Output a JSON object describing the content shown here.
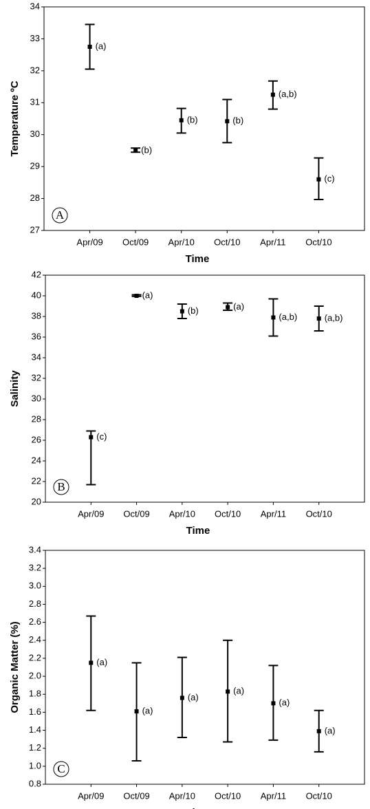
{
  "chart_data": [
    {
      "type": "errorbar",
      "panel": "A",
      "x_label": "Time",
      "y_label": "Temperature ºC",
      "categories": [
        "Apr/09",
        "Oct/09",
        "Apr/10",
        "Oct/10",
        "Apr/11",
        "Oct/10"
      ],
      "values": [
        32.75,
        29.5,
        30.45,
        30.42,
        31.25,
        28.6
      ],
      "lower": [
        32.05,
        29.45,
        30.05,
        29.75,
        30.8,
        27.97
      ],
      "upper": [
        33.45,
        29.58,
        30.82,
        31.1,
        31.68,
        29.27
      ],
      "group_labels": [
        "(a)",
        "(b)",
        "(b)",
        "(b)",
        "(a,b)",
        "(c)"
      ],
      "ylim": [
        27,
        34
      ],
      "yticks": [
        27,
        28,
        29,
        30,
        31,
        32,
        33,
        34
      ],
      "color": "#000000"
    },
    {
      "type": "errorbar",
      "panel": "B",
      "x_label": "Time",
      "y_label": "Salinity",
      "categories": [
        "Apr/09",
        "Oct/09",
        "Apr/10",
        "Oct/10",
        "Apr/11",
        "Oct/10"
      ],
      "values": [
        26.3,
        40.0,
        38.5,
        38.9,
        37.9,
        37.8
      ],
      "lower": [
        21.7,
        39.95,
        37.8,
        38.6,
        36.1,
        36.6
      ],
      "upper": [
        26.9,
        40.1,
        39.2,
        39.3,
        39.7,
        39.0
      ],
      "group_labels": [
        "(c)",
        "(a)",
        "(b)",
        "(a)",
        "(a,b)",
        "(a,b)"
      ],
      "ylim": [
        20,
        42
      ],
      "yticks": [
        20,
        22,
        24,
        26,
        28,
        30,
        32,
        34,
        36,
        38,
        40,
        42
      ],
      "color": "#000000"
    },
    {
      "type": "errorbar",
      "panel": "C",
      "x_label": "Time",
      "y_label": "Organic Matter (%)",
      "categories": [
        "Apr/09",
        "Oct/09",
        "Apr/10",
        "Oct/10",
        "Apr/11",
        "Oct/10"
      ],
      "values": [
        2.15,
        1.61,
        1.76,
        1.83,
        1.7,
        1.39
      ],
      "lower": [
        1.62,
        1.06,
        1.32,
        1.27,
        1.29,
        1.16
      ],
      "upper": [
        2.67,
        2.15,
        2.21,
        2.4,
        2.12,
        1.62
      ],
      "group_labels": [
        "(a)",
        "(a)",
        "(a)",
        "(a)",
        "(a)",
        "(a)"
      ],
      "ylim": [
        0.8,
        3.4
      ],
      "yticks": [
        0.8,
        {
          "value": 1,
          "label": "1.0"
        },
        1.2,
        1.4,
        1.6,
        1.8,
        {
          "value": 2,
          "label": "2.0"
        },
        2.2,
        2.4,
        2.6,
        2.8,
        {
          "value": 3,
          "label": "3.0"
        },
        3.2,
        3.4
      ],
      "color": "#000000"
    }
  ]
}
